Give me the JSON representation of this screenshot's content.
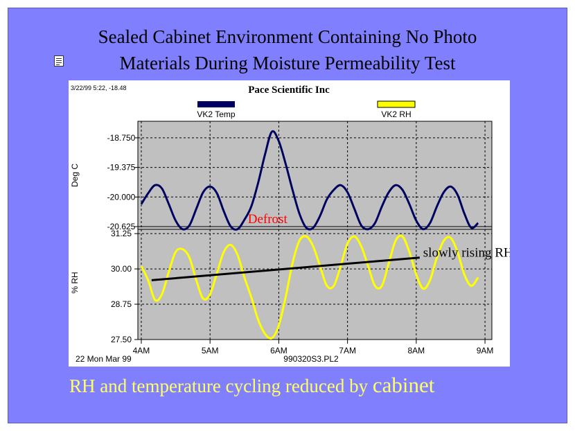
{
  "slide": {
    "title_line1": "Sealed Cabinet Environment Containing No Photo",
    "title_line2": "Materials During Moisture Permeability Test",
    "icon": "note-icon",
    "caption_main": "RH and temperature cycling reduced by ",
    "caption_emph": "cabinet",
    "background_color": "#8080ff",
    "caption_color": "#ffff66"
  },
  "chart_data": {
    "type": "line",
    "header_stamp": "3/22/99 5:22, -18.48",
    "title": "Pace Scientific Inc",
    "footer_left": "22 Mon Mar 99",
    "footer_center": "990320S3.PL2",
    "x_ticks": [
      "4AM",
      "5AM",
      "6AM",
      "7AM",
      "8AM",
      "9AM"
    ],
    "xlim_hours": [
      3.95,
      9.1
    ],
    "grid": true,
    "legend_position": "top",
    "panels": [
      {
        "ylabel": "Deg C",
        "ylim": [
          -20.625,
          -18.4
        ],
        "y_ticks": [
          "-18.750",
          "-19.375",
          "-20.000",
          "-20.625"
        ],
        "series": [
          {
            "name": "VK2 Temp",
            "color": "#000060",
            "x": [
              4.0,
              4.1,
              4.2,
              4.3,
              4.4,
              4.5,
              4.6,
              4.7,
              4.8,
              4.9,
              5.0,
              5.1,
              5.2,
              5.3,
              5.4,
              5.5,
              5.6,
              5.7,
              5.8,
              5.9,
              6.0,
              6.1,
              6.2,
              6.3,
              6.4,
              6.5,
              6.6,
              6.7,
              6.8,
              6.9,
              7.0,
              7.1,
              7.2,
              7.3,
              7.4,
              7.5,
              7.6,
              7.7,
              7.8,
              7.9,
              8.0,
              8.1,
              8.2,
              8.3,
              8.4,
              8.5,
              8.6,
              8.7,
              8.8,
              8.9
            ],
            "y": [
              -20.15,
              -19.92,
              -19.75,
              -19.82,
              -20.15,
              -20.5,
              -20.68,
              -20.6,
              -20.25,
              -19.9,
              -19.78,
              -19.92,
              -20.3,
              -20.62,
              -20.68,
              -20.48,
              -20.2,
              -19.7,
              -19.1,
              -18.62,
              -18.82,
              -19.3,
              -19.85,
              -20.35,
              -20.65,
              -20.65,
              -20.4,
              -20.05,
              -19.85,
              -19.75,
              -19.9,
              -20.25,
              -20.6,
              -20.68,
              -20.55,
              -20.2,
              -19.9,
              -19.75,
              -19.85,
              -20.15,
              -20.5,
              -20.68,
              -20.55,
              -20.2,
              -19.9,
              -19.78,
              -19.95,
              -20.35,
              -20.65,
              -20.55
            ]
          }
        ]
      },
      {
        "ylabel": "% RH",
        "ylim": [
          27.5,
          31.4
        ],
        "y_ticks": [
          "31.25",
          "30.00",
          "28.75",
          "27.50"
        ],
        "series": [
          {
            "name": "VK2 RH",
            "color": "#ffff00",
            "x": [
              4.0,
              4.1,
              4.2,
              4.3,
              4.4,
              4.5,
              4.6,
              4.7,
              4.8,
              4.9,
              5.0,
              5.1,
              5.2,
              5.3,
              5.4,
              5.5,
              5.6,
              5.7,
              5.8,
              5.9,
              6.0,
              6.1,
              6.2,
              6.3,
              6.4,
              6.5,
              6.6,
              6.7,
              6.8,
              6.9,
              7.0,
              7.1,
              7.2,
              7.3,
              7.4,
              7.5,
              7.6,
              7.7,
              7.8,
              7.9,
              8.0,
              8.1,
              8.2,
              8.3,
              8.4,
              8.5,
              8.6,
              8.7,
              8.8,
              8.9
            ],
            "y": [
              30.1,
              29.6,
              28.9,
              29.1,
              29.9,
              30.6,
              30.7,
              30.4,
              29.6,
              28.95,
              29.1,
              29.85,
              30.6,
              30.85,
              30.5,
              29.7,
              29.0,
              28.2,
              27.7,
              27.55,
              28.0,
              29.0,
              30.2,
              31.0,
              31.15,
              30.8,
              30.1,
              29.4,
              29.4,
              30.1,
              30.9,
              31.15,
              30.8,
              30.1,
              29.4,
              29.4,
              30.2,
              31.0,
              31.15,
              30.6,
              29.8,
              29.3,
              29.6,
              30.4,
              31.0,
              31.1,
              30.6,
              29.8,
              29.4,
              29.7
            ]
          }
        ],
        "trend_line": {
          "x": [
            4.15,
            8.05
          ],
          "y": [
            29.6,
            30.4
          ]
        }
      }
    ],
    "annotations": [
      {
        "text": "Defrost",
        "color": "#ff0000",
        "x_hour": 5.55
      },
      {
        "text": "slowly rising RH",
        "color": "#000000",
        "x_hour": 8.1,
        "y": 30.45
      }
    ]
  }
}
